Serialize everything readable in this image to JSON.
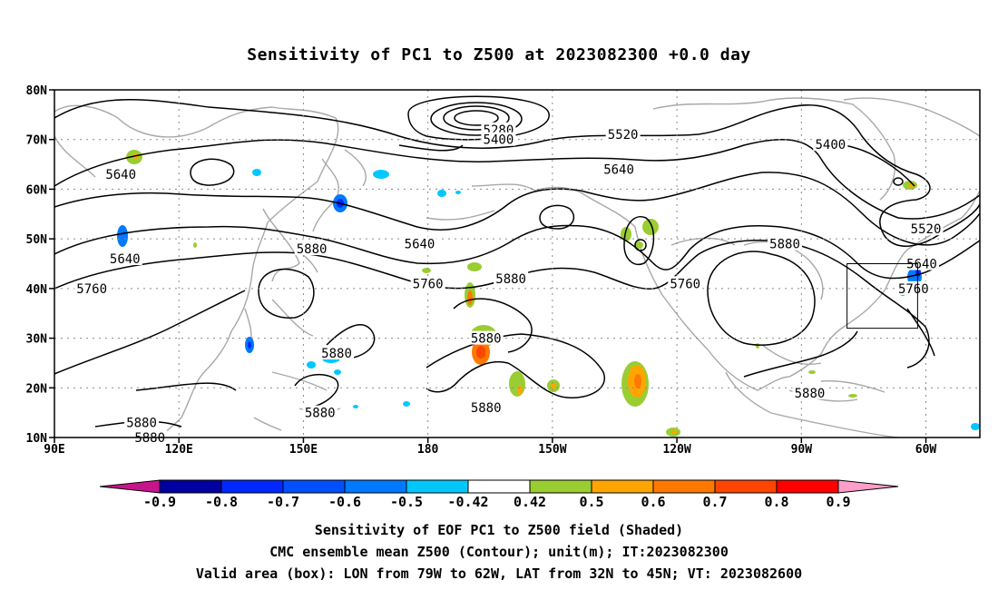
{
  "title": "Sensitivity of PC1 to Z500 at 2023082300 +0.0 day",
  "map": {
    "lon_ticks": [
      {
        "lon": 90,
        "label": "90E"
      },
      {
        "lon": 120,
        "label": "120E"
      },
      {
        "lon": 150,
        "label": "150E"
      },
      {
        "lon": 180,
        "label": "180"
      },
      {
        "lon": 210,
        "label": "150W"
      },
      {
        "lon": 240,
        "label": "120W"
      },
      {
        "lon": 270,
        "label": "90W"
      },
      {
        "lon": 300,
        "label": "60W"
      }
    ],
    "lat_ticks": [
      {
        "lat": 80,
        "label": "80N"
      },
      {
        "lat": 70,
        "label": "70N"
      },
      {
        "lat": 60,
        "label": "60N"
      },
      {
        "lat": 50,
        "label": "50N"
      },
      {
        "lat": 40,
        "label": "40N"
      },
      {
        "lat": 30,
        "label": "30N"
      },
      {
        "lat": 20,
        "label": "20N"
      },
      {
        "lat": 10,
        "label": "10N"
      }
    ],
    "lon_range": [
      90,
      313
    ],
    "lat_range": [
      10,
      80
    ],
    "gridlines": "dotted",
    "valid_box": {
      "lon_w": 281,
      "lon_e": 298,
      "lat_s": 32,
      "lat_n": 45
    },
    "contour_labels": [
      {
        "text": "5280",
        "lon": 197,
        "lat": 72
      },
      {
        "text": "5400",
        "lon": 197,
        "lat": 70
      },
      {
        "text": "5520",
        "lon": 227,
        "lat": 71
      },
      {
        "text": "5400",
        "lon": 277,
        "lat": 69
      },
      {
        "text": "5640",
        "lon": 226,
        "lat": 64
      },
      {
        "text": "5640",
        "lon": 106,
        "lat": 63
      },
      {
        "text": "5520",
        "lon": 300,
        "lat": 52
      },
      {
        "text": "5640",
        "lon": 178,
        "lat": 49
      },
      {
        "text": "5640",
        "lon": 107,
        "lat": 46
      },
      {
        "text": "5880",
        "lon": 152,
        "lat": 48
      },
      {
        "text": "5880",
        "lon": 266,
        "lat": 49
      },
      {
        "text": "5640",
        "lon": 299,
        "lat": 45
      },
      {
        "text": "5760",
        "lon": 242,
        "lat": 41
      },
      {
        "text": "5760",
        "lon": 180,
        "lat": 41
      },
      {
        "text": "5880",
        "lon": 200,
        "lat": 42
      },
      {
        "text": "5760",
        "lon": 297,
        "lat": 40
      },
      {
        "text": "5760",
        "lon": 99,
        "lat": 40
      },
      {
        "text": "5880",
        "lon": 194,
        "lat": 30
      },
      {
        "text": "5880",
        "lon": 158,
        "lat": 27
      },
      {
        "text": "5880",
        "lon": 272,
        "lat": 19
      },
      {
        "text": "5880",
        "lon": 154,
        "lat": 15
      },
      {
        "text": "5880",
        "lon": 194,
        "lat": 16
      },
      {
        "text": "5880",
        "lon": 111,
        "lat": 13
      },
      {
        "text": "5880",
        "lon": 113,
        "lat": 10
      }
    ]
  },
  "colorbar": {
    "labels": [
      "-0.9",
      "-0.8",
      "-0.7",
      "-0.6",
      "-0.5",
      "-0.42",
      "0.42",
      "0.5",
      "0.6",
      "0.7",
      "0.8",
      "0.9"
    ],
    "colors": [
      "#0000a0",
      "#0028ff",
      "#0050ff",
      "#0078ff",
      "#00c8ff",
      "#ffffff",
      "#9acd32",
      "#ffa500",
      "#ff7800",
      "#ff4500",
      "#ff0000"
    ],
    "end_low_color": "#c8148c",
    "end_high_color": "#ff9ec8"
  },
  "captions": [
    "Sensitivity of EOF PC1 to Z500 field (Shaded)",
    "CMC ensemble mean Z500 (Contour); unit(m); IT:2023082300",
    "Valid area (box): LON from 79W to 62W, LAT from 32N to 45N; VT: 2023082600"
  ]
}
